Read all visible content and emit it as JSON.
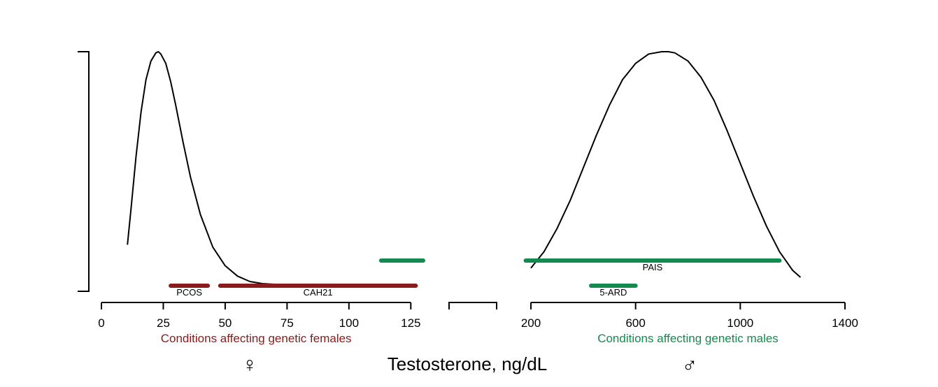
{
  "chart_data": {
    "type": "line",
    "title": "",
    "xlabel": "Testosterone, ng/dL",
    "ylabel": "",
    "female_symbol": "♀",
    "male_symbol": "♂",
    "colors": {
      "female": "#8b1a1a",
      "male": "#138a4e",
      "curve": "#000000"
    },
    "panels": [
      {
        "name": "female",
        "xlim": [
          0,
          130
        ],
        "ticks": [
          0,
          25,
          50,
          75,
          100,
          125
        ],
        "tick_labels": [
          "0",
          "25",
          "50",
          "75",
          "100",
          "125"
        ],
        "condition_label": "Conditions affecting genetic females",
        "curve": {
          "x": [
            10.5,
            12,
            14,
            16,
            18,
            20,
            22,
            23,
            24,
            26,
            28,
            30,
            33,
            36,
            40,
            45,
            50,
            55,
            60,
            65,
            70
          ],
          "y": [
            0.17,
            0.33,
            0.55,
            0.74,
            0.88,
            0.96,
            0.995,
            1.0,
            0.99,
            0.95,
            0.87,
            0.77,
            0.61,
            0.46,
            0.3,
            0.16,
            0.08,
            0.035,
            0.012,
            0.003,
            0.0
          ]
        },
        "bars": [
          {
            "label": "PCOS",
            "start": 28,
            "end": 43,
            "level": "low",
            "color": "#8b1a1a"
          },
          {
            "label": "CAH21",
            "start": 48,
            "end": 127,
            "level": "low",
            "color": "#8b1a1a"
          },
          {
            "label": "",
            "start": 113,
            "end": 130,
            "level": "high",
            "color": "#138a4e"
          }
        ]
      },
      {
        "name": "male",
        "xlim": [
          200,
          1400
        ],
        "ticks": [
          200,
          600,
          1000,
          1400
        ],
        "tick_labels": [
          "200",
          "600",
          "1000",
          "1400"
        ],
        "condition_label": "Conditions affecting genetic males",
        "curve": {
          "x": [
            200,
            250,
            300,
            350,
            400,
            450,
            500,
            550,
            600,
            650,
            700,
            725,
            750,
            800,
            850,
            900,
            950,
            1000,
            1050,
            1100,
            1150,
            1200,
            1230
          ],
          "y": [
            0.07,
            0.14,
            0.24,
            0.36,
            0.5,
            0.64,
            0.77,
            0.88,
            0.95,
            0.99,
            1.0,
            1.0,
            0.995,
            0.96,
            0.89,
            0.79,
            0.66,
            0.52,
            0.38,
            0.25,
            0.14,
            0.06,
            0.03
          ]
        },
        "bars": [
          {
            "label": "PAIS",
            "start": 180,
            "end": 1150,
            "level": "high",
            "color": "#138a4e"
          },
          {
            "label": "5-ARD",
            "start": 430,
            "end": 600,
            "level": "low",
            "color": "#138a4e"
          }
        ]
      }
    ]
  }
}
